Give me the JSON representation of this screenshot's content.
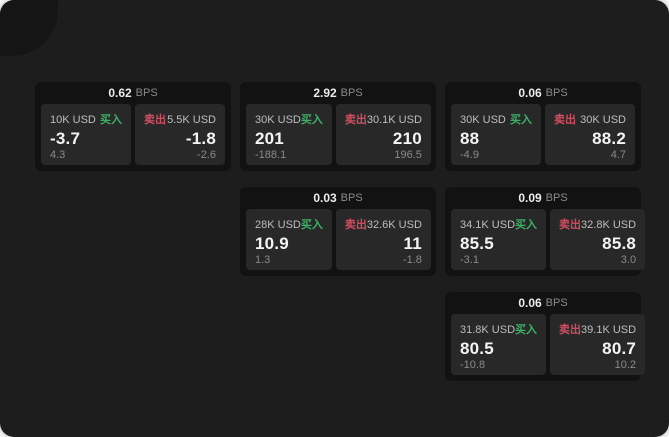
{
  "labels": {
    "bps": "BPS",
    "buy": "买入",
    "sell": "卖出"
  },
  "colors": {
    "background": "#1d1d1d",
    "card": "#121212",
    "tile": "#282828",
    "buy": "#3cb166",
    "sell": "#cf4d60"
  },
  "cards": [
    {
      "bps": "0.62",
      "buy": {
        "size": "10K USD",
        "value": "-3.7",
        "sub": "4.3"
      },
      "sell": {
        "size": "5.5K USD",
        "value": "-1.8",
        "sub": "-2.6"
      }
    },
    {
      "bps": "2.92",
      "buy": {
        "size": "30K USD",
        "value": "201",
        "sub": "-188.1"
      },
      "sell": {
        "size": "30.1K USD",
        "value": "210",
        "sub": "196.5"
      }
    },
    {
      "bps": "0.06",
      "buy": {
        "size": "30K USD",
        "value": "88",
        "sub": "-4.9"
      },
      "sell": {
        "size": "30K USD",
        "value": "88.2",
        "sub": "4.7"
      }
    },
    {
      "bps": "0.03",
      "buy": {
        "size": "28K USD",
        "value": "10.9",
        "sub": "1.3"
      },
      "sell": {
        "size": "32.6K USD",
        "value": "11",
        "sub": "-1.8"
      }
    },
    {
      "bps": "0.09",
      "buy": {
        "size": "34.1K USD",
        "value": "85.5",
        "sub": "-3.1"
      },
      "sell": {
        "size": "32.8K USD",
        "value": "85.8",
        "sub": "3.0"
      }
    },
    {
      "bps": "0.06",
      "buy": {
        "size": "31.8K USD",
        "value": "80.5",
        "sub": "-10.8"
      },
      "sell": {
        "size": "39.1K USD",
        "value": "80.7",
        "sub": "10.2"
      }
    }
  ]
}
